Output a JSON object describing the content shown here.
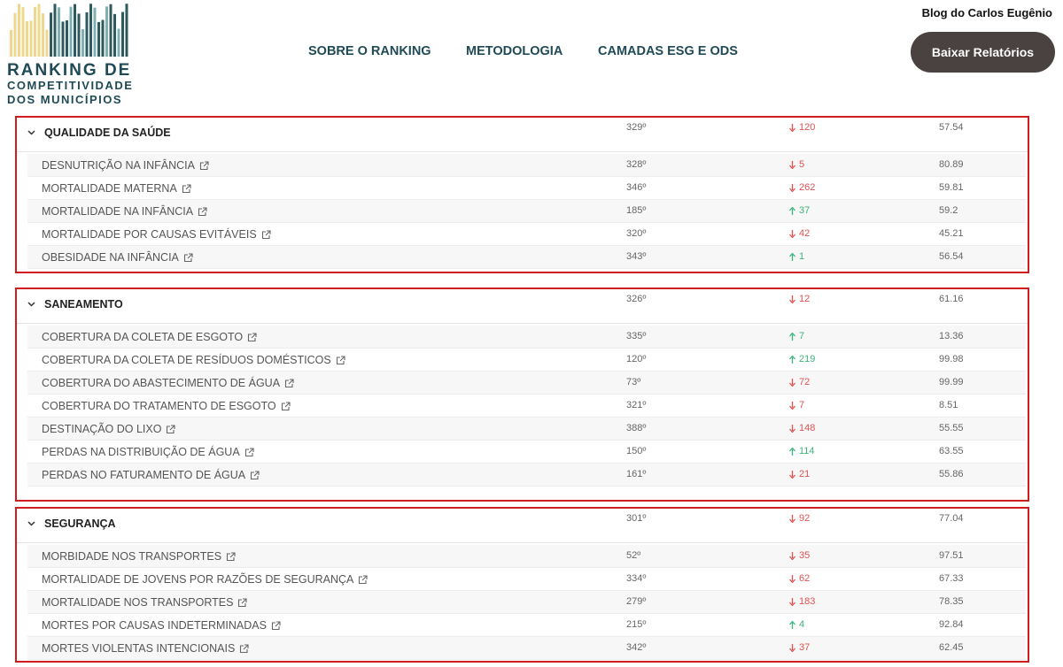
{
  "header": {
    "logo": [
      "RANKING DE",
      "COMPETITIVIDADE",
      "DOS MUNICÍPIOS"
    ],
    "nav": [
      "SOBRE O RANKING",
      "METODOLOGIA",
      "CAMADAS ESG E ODS"
    ],
    "button": "Baixar Relatórios",
    "watermark": "Blog do Carlos Eugênio"
  },
  "sections": [
    {
      "name": "QUALIDADE DA SAÚDE",
      "rank": "329º",
      "trend": "down",
      "change": "120",
      "score": "57.54",
      "rows": [
        {
          "name": "DESNUTRIÇÃO NA INFÂNCIA",
          "rank": "328º",
          "trend": "down",
          "change": "5",
          "score": "80.89"
        },
        {
          "name": "MORTALIDADE MATERNA",
          "rank": "346º",
          "trend": "down",
          "change": "262",
          "score": "59.81"
        },
        {
          "name": "MORTALIDADE NA INFÂNCIA",
          "rank": "185º",
          "trend": "up",
          "change": "37",
          "score": "59.2"
        },
        {
          "name": "MORTALIDADE POR CAUSAS EVITÁVEIS",
          "rank": "320º",
          "trend": "down",
          "change": "42",
          "score": "45.21"
        },
        {
          "name": "OBESIDADE NA INFÂNCIA",
          "rank": "343º",
          "trend": "up",
          "change": "1",
          "score": "56.54"
        }
      ]
    },
    {
      "name": "SANEAMENTO",
      "rank": "326º",
      "trend": "down",
      "change": "12",
      "score": "61.16",
      "rows": [
        {
          "name": "COBERTURA DA COLETA DE ESGOTO",
          "rank": "335º",
          "trend": "up",
          "change": "7",
          "score": "13.36"
        },
        {
          "name": "COBERTURA DA COLETA DE RESÍDUOS DOMÉSTICOS",
          "rank": "120º",
          "trend": "up",
          "change": "219",
          "score": "99.98"
        },
        {
          "name": "COBERTURA DO ABASTECIMENTO DE ÁGUA",
          "rank": "73º",
          "trend": "down",
          "change": "72",
          "score": "99.99"
        },
        {
          "name": "COBERTURA DO TRATAMENTO DE ESGOTO",
          "rank": "321º",
          "trend": "down",
          "change": "7",
          "score": "8.51"
        },
        {
          "name": "DESTINAÇÃO DO LIXO",
          "rank": "388º",
          "trend": "down",
          "change": "148",
          "score": "55.55"
        },
        {
          "name": "PERDAS NA DISTRIBUIÇÃO DE ÁGUA",
          "rank": "150º",
          "trend": "up",
          "change": "114",
          "score": "63.55"
        },
        {
          "name": "PERDAS NO FATURAMENTO DE ÁGUA",
          "rank": "161º",
          "trend": "down",
          "change": "21",
          "score": "55.86"
        }
      ]
    },
    {
      "name": "SEGURANÇA",
      "rank": "301º",
      "trend": "down",
      "change": "92",
      "score": "77.04",
      "rows": [
        {
          "name": "MORBIDADE NOS TRANSPORTES",
          "rank": "52º",
          "trend": "down",
          "change": "35",
          "score": "97.51"
        },
        {
          "name": "MORTALIDADE DE JOVENS POR RAZÕES DE SEGURANÇA",
          "rank": "334º",
          "trend": "down",
          "change": "62",
          "score": "67.33"
        },
        {
          "name": "MORTALIDADE NOS TRANSPORTES",
          "rank": "279º",
          "trend": "down",
          "change": "183",
          "score": "78.35"
        },
        {
          "name": "MORTES POR CAUSAS INDETERMINADAS",
          "rank": "215º",
          "trend": "up",
          "change": "4",
          "score": "92.84"
        },
        {
          "name": "MORTES VIOLENTAS INTENCIONAIS",
          "rank": "342º",
          "trend": "down",
          "change": "37",
          "score": "62.45"
        }
      ]
    }
  ]
}
